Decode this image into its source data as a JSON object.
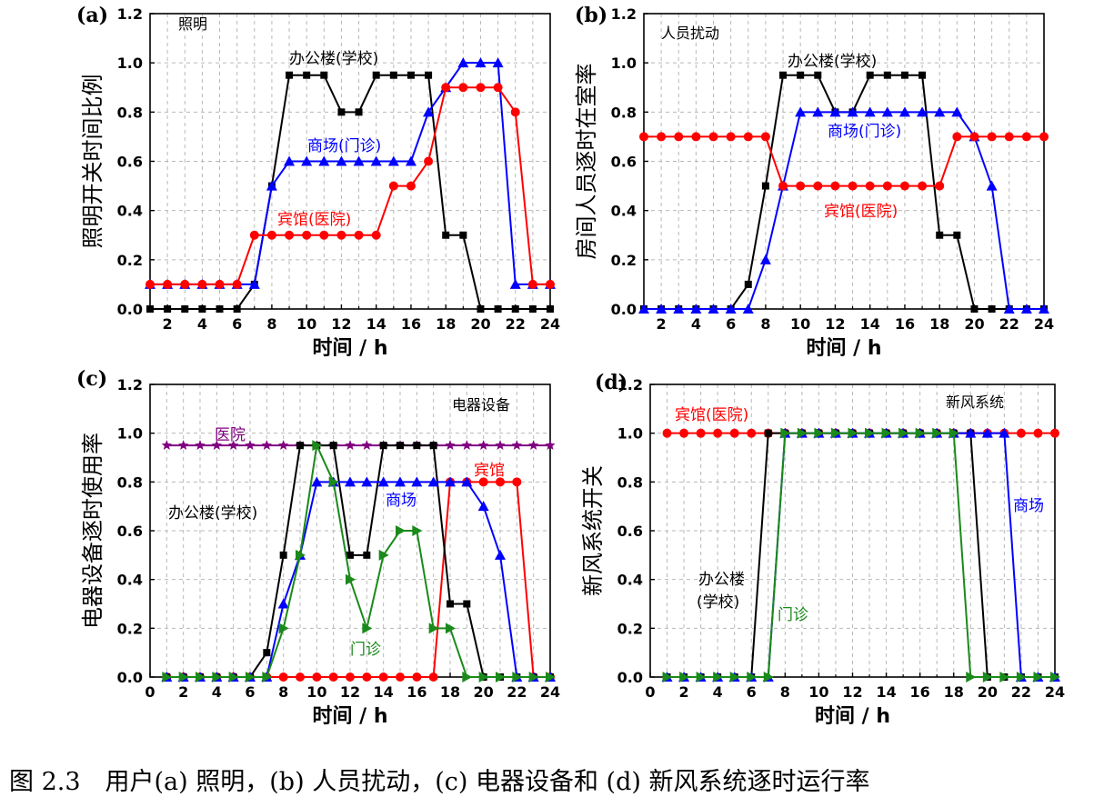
{
  "caption": "图 2.3　用户(a) 照明，(b) 人员扰动，(c) 电器设备和 (d) 新风系统逐时运行率",
  "colors": {
    "black": "#000000",
    "red": "#ff0000",
    "blue": "#0000ff",
    "green": "#1a8a1a",
    "purple": "#800080"
  },
  "chart_data": [
    {
      "type": "line",
      "panel_label": "(a)",
      "title": "照明",
      "xlabel": "时间 / h",
      "ylabel": "照明开关时间比例",
      "xlim": [
        1,
        24
      ],
      "ylim": [
        0,
        1.2
      ],
      "xticks": [
        "2",
        "4",
        "6",
        "8",
        "10",
        "12",
        "14",
        "16",
        "18",
        "20",
        "22",
        "24"
      ],
      "yticks": [
        "0.0",
        "0.2",
        "0.4",
        "0.6",
        "0.8",
        "1.0",
        "1.2"
      ],
      "grid": true,
      "x": [
        1,
        2,
        3,
        4,
        5,
        6,
        7,
        8,
        9,
        10,
        11,
        12,
        13,
        14,
        15,
        16,
        17,
        18,
        19,
        20,
        21,
        22,
        23,
        24
      ],
      "series": [
        {
          "name": "办公楼(学校)",
          "color": "black",
          "marker": "square",
          "values": [
            0,
            0,
            0,
            0,
            0,
            0,
            0.1,
            0.5,
            0.95,
            0.95,
            0.95,
            0.8,
            0.8,
            0.95,
            0.95,
            0.95,
            0.95,
            0.3,
            0.3,
            0,
            0,
            0,
            0,
            0
          ]
        },
        {
          "name": "商场(门诊)",
          "color": "blue",
          "marker": "triangle-up",
          "values": [
            0.1,
            0.1,
            0.1,
            0.1,
            0.1,
            0.1,
            0.1,
            0.5,
            0.6,
            0.6,
            0.6,
            0.6,
            0.6,
            0.6,
            0.6,
            0.6,
            0.8,
            0.9,
            1.0,
            1.0,
            1.0,
            0.1,
            0.1,
            0.1
          ]
        },
        {
          "name": "宾馆(医院)",
          "color": "red",
          "marker": "circle",
          "values": [
            0.1,
            0.1,
            0.1,
            0.1,
            0.1,
            0.1,
            0.3,
            0.3,
            0.3,
            0.3,
            0.3,
            0.3,
            0.3,
            0.3,
            0.5,
            0.5,
            0.6,
            0.9,
            0.9,
            0.9,
            0.9,
            0.8,
            0.1,
            0.1
          ]
        }
      ]
    },
    {
      "type": "line",
      "panel_label": "(b)",
      "title": "人员扰动",
      "xlabel": "时间 / h",
      "ylabel": "房间人员逐时在室率",
      "xlim": [
        1,
        24
      ],
      "ylim": [
        0,
        1.2
      ],
      "xticks": [
        "2",
        "4",
        "6",
        "8",
        "10",
        "12",
        "14",
        "16",
        "18",
        "20",
        "22",
        "24"
      ],
      "yticks": [
        "0.0",
        "0.2",
        "0.4",
        "0.6",
        "0.8",
        "1.0",
        "1.2"
      ],
      "grid": true,
      "x": [
        1,
        2,
        3,
        4,
        5,
        6,
        7,
        8,
        9,
        10,
        11,
        12,
        13,
        14,
        15,
        16,
        17,
        18,
        19,
        20,
        21,
        22,
        23,
        24
      ],
      "series": [
        {
          "name": "办公楼(学校)",
          "color": "black",
          "marker": "square",
          "values": [
            0,
            0,
            0,
            0,
            0,
            0,
            0.1,
            0.5,
            0.95,
            0.95,
            0.95,
            0.8,
            0.8,
            0.95,
            0.95,
            0.95,
            0.95,
            0.3,
            0.3,
            0,
            0,
            0,
            0,
            0
          ]
        },
        {
          "name": "商场(门诊)",
          "color": "blue",
          "marker": "triangle-up",
          "values": [
            0,
            0,
            0,
            0,
            0,
            0,
            0,
            0.2,
            0.5,
            0.8,
            0.8,
            0.8,
            0.8,
            0.8,
            0.8,
            0.8,
            0.8,
            0.8,
            0.8,
            0.7,
            0.5,
            0,
            0,
            0
          ]
        },
        {
          "name": "宾馆(医院)",
          "color": "red",
          "marker": "circle",
          "values": [
            0.7,
            0.7,
            0.7,
            0.7,
            0.7,
            0.7,
            0.7,
            0.7,
            0.5,
            0.5,
            0.5,
            0.5,
            0.5,
            0.5,
            0.5,
            0.5,
            0.5,
            0.5,
            0.7,
            0.7,
            0.7,
            0.7,
            0.7,
            0.7
          ]
        }
      ]
    },
    {
      "type": "line",
      "panel_label": "(c)",
      "title": "电器设备",
      "xlabel": "时间 / h",
      "ylabel": "电器设备逐时使用率",
      "xlim": [
        0,
        24
      ],
      "ylim": [
        0,
        1.2
      ],
      "xticks": [
        "0",
        "2",
        "4",
        "6",
        "8",
        "10",
        "12",
        "14",
        "16",
        "18",
        "20",
        "22",
        "24"
      ],
      "yticks": [
        "0.0",
        "0.2",
        "0.4",
        "0.6",
        "0.8",
        "1.0",
        "1.2"
      ],
      "grid": true,
      "x": [
        1,
        2,
        3,
        4,
        5,
        6,
        7,
        8,
        9,
        10,
        11,
        12,
        13,
        14,
        15,
        16,
        17,
        18,
        19,
        20,
        21,
        22,
        23,
        24
      ],
      "series": [
        {
          "name": "医院",
          "color": "purple",
          "marker": "star",
          "values": [
            0.95,
            0.95,
            0.95,
            0.95,
            0.95,
            0.95,
            0.95,
            0.95,
            0.95,
            0.95,
            0.95,
            0.95,
            0.95,
            0.95,
            0.95,
            0.95,
            0.95,
            0.95,
            0.95,
            0.95,
            0.95,
            0.95,
            0.95,
            0.95
          ]
        },
        {
          "name": "宾馆",
          "color": "red",
          "marker": "circle",
          "values": [
            0,
            0,
            0,
            0,
            0,
            0,
            0,
            0,
            0,
            0,
            0,
            0,
            0,
            0,
            0,
            0,
            0,
            0.8,
            0.8,
            0.8,
            0.8,
            0.8,
            0,
            0
          ]
        },
        {
          "name": "办公楼(学校)",
          "color": "black",
          "marker": "square",
          "values": [
            0,
            0,
            0,
            0,
            0,
            0,
            0.1,
            0.5,
            0.95,
            0.95,
            0.95,
            0.5,
            0.5,
            0.95,
            0.95,
            0.95,
            0.95,
            0.3,
            0.3,
            0,
            0,
            0,
            0,
            0
          ]
        },
        {
          "name": "商场",
          "color": "blue",
          "marker": "triangle-up",
          "values": [
            0,
            0,
            0,
            0,
            0,
            0,
            0,
            0.3,
            0.5,
            0.8,
            0.8,
            0.8,
            0.8,
            0.8,
            0.8,
            0.8,
            0.8,
            0.8,
            0.8,
            0.7,
            0.5,
            0,
            0,
            0
          ]
        },
        {
          "name": "门诊",
          "color": "green",
          "marker": "triangle-right",
          "values": [
            0,
            0,
            0,
            0,
            0,
            0,
            0,
            0.2,
            0.5,
            0.95,
            0.8,
            0.4,
            0.2,
            0.5,
            0.6,
            0.6,
            0.2,
            0.2,
            0,
            0,
            0,
            0,
            0,
            0
          ]
        }
      ]
    },
    {
      "type": "line",
      "panel_label": "(d)",
      "title": "新风系统",
      "xlabel": "时间 / h",
      "ylabel": "新风系统开关",
      "xlim": [
        0,
        24
      ],
      "ylim": [
        0,
        1.2
      ],
      "xticks": [
        "0",
        "2",
        "4",
        "6",
        "8",
        "10",
        "12",
        "14",
        "16",
        "18",
        "20",
        "22",
        "24"
      ],
      "yticks": [
        "0.0",
        "0.2",
        "0.4",
        "0.6",
        "0.8",
        "1.0",
        "1.2"
      ],
      "grid": true,
      "x": [
        1,
        2,
        3,
        4,
        5,
        6,
        7,
        8,
        9,
        10,
        11,
        12,
        13,
        14,
        15,
        16,
        17,
        18,
        19,
        20,
        21,
        22,
        23,
        24
      ],
      "series": [
        {
          "name": "宾馆(医院)",
          "color": "red",
          "marker": "circle",
          "values": [
            1,
            1,
            1,
            1,
            1,
            1,
            1,
            1,
            1,
            1,
            1,
            1,
            1,
            1,
            1,
            1,
            1,
            1,
            1,
            1,
            1,
            1,
            1,
            1
          ]
        },
        {
          "name": "办公楼(学校)",
          "color": "black",
          "marker": "square",
          "values": [
            0,
            0,
            0,
            0,
            0,
            0,
            1,
            1,
            1,
            1,
            1,
            1,
            1,
            1,
            1,
            1,
            1,
            1,
            1,
            0,
            0,
            0,
            0,
            0
          ]
        },
        {
          "name": "商场",
          "color": "blue",
          "marker": "triangle-up",
          "values": [
            0,
            0,
            0,
            0,
            0,
            0,
            0,
            1,
            1,
            1,
            1,
            1,
            1,
            1,
            1,
            1,
            1,
            1,
            1,
            1,
            1,
            0,
            0,
            0
          ]
        },
        {
          "name": "门诊",
          "color": "green",
          "marker": "triangle-right",
          "values": [
            0,
            0,
            0,
            0,
            0,
            0,
            0,
            1,
            1,
            1,
            1,
            1,
            1,
            1,
            1,
            1,
            1,
            1,
            0,
            0,
            0,
            0,
            0,
            0
          ]
        }
      ]
    }
  ]
}
